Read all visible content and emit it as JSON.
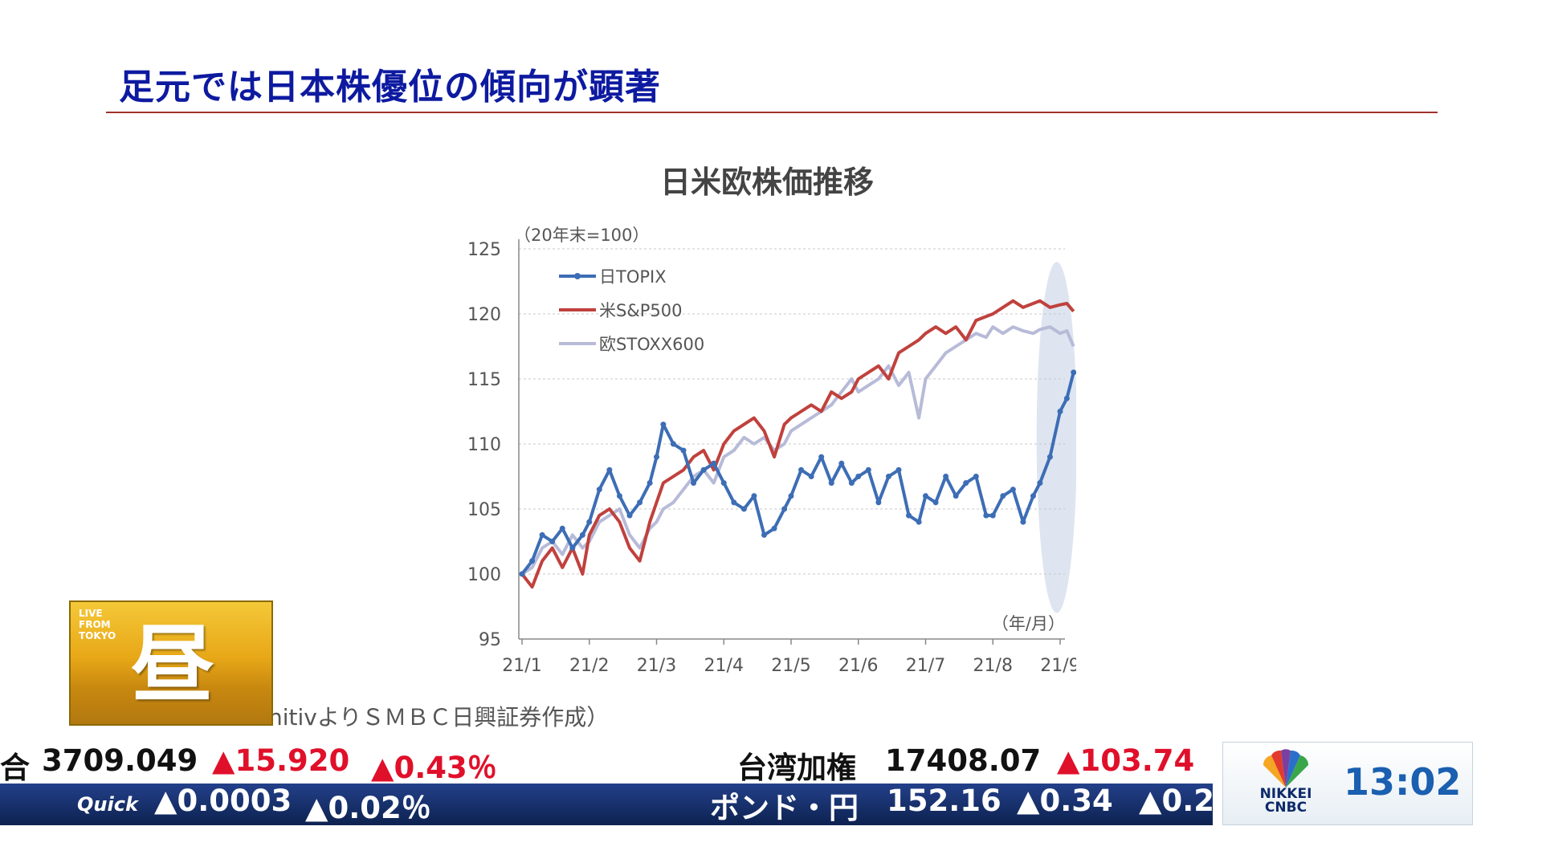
{
  "slide": {
    "title": "足元では日本株優位の傾向が顕著",
    "chart_title": "日米欧株価推移",
    "source_note": "nitivよりＳＭＢＣ日興証券作成）"
  },
  "badge": {
    "live_text": "LIVE\nFROM\nTOKYO",
    "kanji": "昼"
  },
  "ticker_top": {
    "index_name_partial": "合",
    "value": "3709.049",
    "change": "▲15.920",
    "change_pct": "▲0.43％",
    "name2": "台湾加権",
    "value2": "17408.07",
    "change2": "▲103.74"
  },
  "ticker_bottom": {
    "logo": "Quick",
    "value1": "▲0.0003",
    "pct1": "▲0.02％",
    "name2": "ポンド・円",
    "value2": "152.16",
    "change2": "▲0.34",
    "pct2": "▲0.2"
  },
  "clock": {
    "logo_line1": "NIKKEI",
    "logo_line2": "CNBC",
    "time": "13:02"
  },
  "colors": {
    "title": "#0d1aa0",
    "topix": "#3d6db5",
    "sp500": "#c0413d",
    "stoxx": "#b7bbd8",
    "highlight": "#c8d4e8",
    "up_arrow": "#e0102a"
  },
  "chart_data": {
    "type": "line",
    "unit_label": "（20年末=100）",
    "x_label": "（年/月）",
    "x_ticks": [
      "21/1",
      "21/2",
      "21/3",
      "21/4",
      "21/5",
      "21/6",
      "21/7",
      "21/8",
      "21/9"
    ],
    "y_ticks": [
      95,
      100,
      105,
      110,
      115,
      120,
      125
    ],
    "ylim": [
      95,
      125
    ],
    "grid": true,
    "legend_position": "top-left",
    "highlight_region": {
      "x_from": 7.65,
      "x_to": 8.25,
      "y_from": 97,
      "y_to": 124
    },
    "series": [
      {
        "name": "日TOPIX",
        "markers": true,
        "x": [
          0,
          0.15,
          0.3,
          0.45,
          0.6,
          0.75,
          0.9,
          1.0,
          1.15,
          1.3,
          1.45,
          1.6,
          1.75,
          1.9,
          2.0,
          2.1,
          2.25,
          2.4,
          2.55,
          2.7,
          2.85,
          3.0,
          3.15,
          3.3,
          3.45,
          3.6,
          3.75,
          3.9,
          4.0,
          4.15,
          4.3,
          4.45,
          4.6,
          4.75,
          4.9,
          5.0,
          5.15,
          5.3,
          5.45,
          5.6,
          5.75,
          5.9,
          6.0,
          6.15,
          6.3,
          6.45,
          6.6,
          6.75,
          6.9,
          7.0,
          7.15,
          7.3,
          7.45,
          7.6,
          7.7,
          7.85,
          8.0,
          8.1,
          8.2
        ],
        "y": [
          100,
          101,
          103,
          102.5,
          103.5,
          102,
          103,
          104,
          106.5,
          108,
          106,
          104.5,
          105.5,
          107,
          109,
          111.5,
          110,
          109.5,
          107,
          108,
          108.5,
          107,
          105.5,
          105,
          106,
          103,
          103.5,
          105,
          106,
          108,
          107.5,
          109,
          107,
          108.5,
          107,
          107.5,
          108,
          105.5,
          107.5,
          108,
          104.5,
          104,
          106,
          105.5,
          107.5,
          106,
          107,
          107.5,
          104.5,
          104.5,
          106,
          106.5,
          104,
          106,
          107,
          109,
          112.5,
          113.5,
          115.5
        ]
      },
      {
        "name": "米S&P500",
        "markers": false,
        "x": [
          0,
          0.15,
          0.3,
          0.45,
          0.6,
          0.75,
          0.9,
          1.0,
          1.15,
          1.3,
          1.45,
          1.6,
          1.75,
          1.9,
          2.0,
          2.1,
          2.25,
          2.4,
          2.55,
          2.7,
          2.85,
          3.0,
          3.15,
          3.3,
          3.45,
          3.6,
          3.75,
          3.9,
          4.0,
          4.15,
          4.3,
          4.45,
          4.6,
          4.75,
          4.9,
          5.0,
          5.15,
          5.3,
          5.45,
          5.6,
          5.75,
          5.9,
          6.0,
          6.15,
          6.3,
          6.45,
          6.6,
          6.75,
          6.9,
          7.0,
          7.15,
          7.3,
          7.45,
          7.6,
          7.7,
          7.85,
          8.0,
          8.1,
          8.2
        ],
        "y": [
          100,
          99,
          101,
          102,
          100.5,
          102,
          100,
          103,
          104.5,
          105,
          104,
          102,
          101,
          104,
          105.5,
          107,
          107.5,
          108,
          109,
          109.5,
          108,
          110,
          111,
          111.5,
          112,
          111,
          109,
          111.5,
          112,
          112.5,
          113,
          112.5,
          114,
          113.5,
          114,
          115,
          115.5,
          116,
          115,
          117,
          117.5,
          118,
          118.5,
          119,
          118.5,
          119,
          118,
          119.5,
          119.8,
          120,
          120.5,
          121,
          120.5,
          120.8,
          121,
          120.5,
          120.7,
          120.8,
          120.2
        ]
      },
      {
        "name": "欧STOXX600",
        "markers": false,
        "x": [
          0,
          0.15,
          0.3,
          0.45,
          0.6,
          0.75,
          0.9,
          1.0,
          1.15,
          1.3,
          1.45,
          1.6,
          1.75,
          1.9,
          2.0,
          2.1,
          2.25,
          2.4,
          2.55,
          2.7,
          2.85,
          3.0,
          3.15,
          3.3,
          3.45,
          3.6,
          3.75,
          3.9,
          4.0,
          4.15,
          4.3,
          4.45,
          4.6,
          4.75,
          4.9,
          5.0,
          5.15,
          5.3,
          5.45,
          5.6,
          5.75,
          5.9,
          6.0,
          6.15,
          6.3,
          6.45,
          6.6,
          6.75,
          6.9,
          7.0,
          7.15,
          7.3,
          7.45,
          7.6,
          7.7,
          7.85,
          8.0,
          8.1,
          8.2
        ],
        "y": [
          100,
          100.5,
          102,
          102.5,
          101.5,
          103,
          102,
          102.5,
          104,
          104.5,
          105,
          103,
          102,
          103.5,
          104,
          105,
          105.5,
          106.5,
          107.5,
          108,
          107,
          109,
          109.5,
          110.5,
          110,
          110.5,
          109.5,
          110,
          111,
          111.5,
          112,
          112.5,
          113,
          114,
          115,
          114,
          114.5,
          115,
          116,
          114.5,
          115.5,
          112,
          115,
          116,
          117,
          117.5,
          118,
          118.5,
          118.2,
          119,
          118.5,
          119,
          118.7,
          118.5,
          118.8,
          119,
          118.5,
          118.7,
          117.5
        ]
      }
    ]
  }
}
